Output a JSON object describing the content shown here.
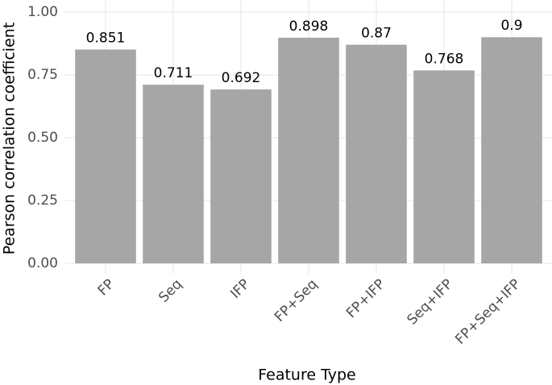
{
  "chart_data": {
    "type": "bar",
    "x_label": "Feature Type",
    "y_label": "Pearson correlation coefficient",
    "categories": [
      "FP",
      "Seq",
      "IFP",
      "FP+Seq",
      "FP+IFP",
      "Seq+IFP",
      "FP+Seq+IFP"
    ],
    "values": [
      0.851,
      0.711,
      0.692,
      0.898,
      0.87,
      0.768,
      0.9
    ],
    "color": "#a6a6a6",
    "ylim": [
      0,
      1
    ],
    "yticks": [
      {
        "value": 0,
        "label": "0.00"
      },
      {
        "value": 0.25,
        "label": "0.25"
      },
      {
        "value": 0.5,
        "label": "0.50"
      },
      {
        "value": 0.75,
        "label": "0.75"
      },
      {
        "value": 1,
        "label": "1.00"
      }
    ],
    "grid": true
  }
}
